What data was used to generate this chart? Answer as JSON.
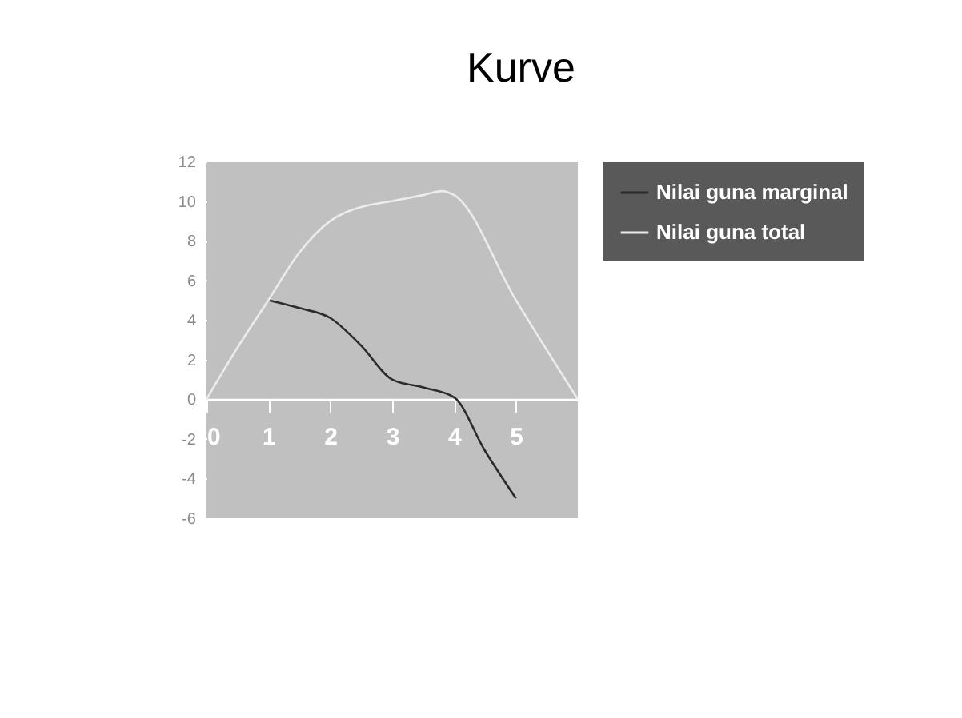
{
  "chart_data": {
    "type": "line",
    "title": "Kurve",
    "xlim": [
      0,
      6
    ],
    "xticks": [
      0,
      1,
      2,
      3,
      4,
      5
    ],
    "ylim": [
      -6,
      12
    ],
    "yticks": [
      -6,
      -4,
      -2,
      0,
      2,
      4,
      6,
      8,
      10,
      12
    ],
    "series": [
      {
        "name": "Nilai guna marginal",
        "color": "#2b2b2b",
        "x": [
          1,
          1.5,
          2,
          2.5,
          3,
          3.5,
          4,
          4.5,
          5
        ],
        "values": [
          5,
          4.6,
          4.1,
          2.7,
          1,
          0.6,
          0.1,
          -2.6,
          -5
        ]
      },
      {
        "name": "Nilai guna total",
        "color": "#ececec",
        "x": [
          0,
          0.5,
          1,
          1.5,
          2,
          2.5,
          3,
          3.5,
          3.8,
          4,
          5,
          6
        ],
        "values": [
          0,
          2.6,
          5,
          7.4,
          9,
          9.7,
          10,
          10.3,
          10.5,
          10.3,
          5,
          0
        ]
      }
    ],
    "legend": "right",
    "grid": false,
    "marker": "none",
    "line_style": "solid"
  }
}
